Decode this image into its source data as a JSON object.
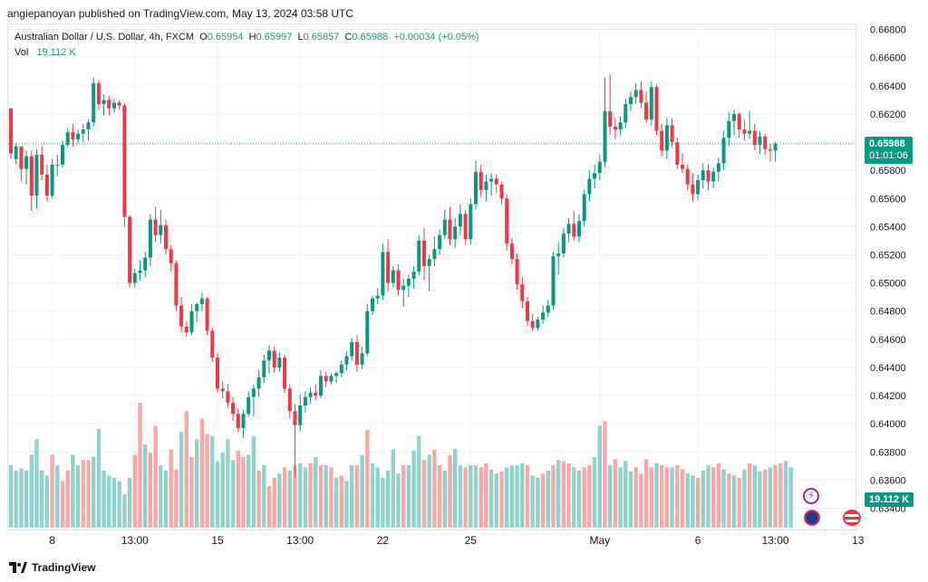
{
  "header": {
    "publisher_line": "angiepanoyan published on TradingView.com, May 13, 2024 03:58 UTC"
  },
  "legend": {
    "symbol": "Australian Dollar / U.S. Dollar, 4h, FXCM",
    "o_label": "O",
    "o_value": "0.65954",
    "h_label": "H",
    "h_value": "0.65997",
    "l_label": "L",
    "l_value": "0.65857",
    "c_label": "C",
    "c_value": "0.65988",
    "change": "+0.00034 (+0.05%)",
    "vol_label": "Vol",
    "vol_value": "19.112 K"
  },
  "price_tag": {
    "price": "0.65988",
    "countdown": "01:01:06"
  },
  "volume_tag": "19.112 K",
  "footer": {
    "logo_text": "TradingView"
  },
  "colors": {
    "up": "#089981",
    "down": "#f23645",
    "vol_up": "#92d2cc",
    "vol_down": "#f7a9a7",
    "grid": "#f0f3fa"
  },
  "chart_data": {
    "type": "candlestick",
    "title": "Australian Dollar / U.S. Dollar, 4h, FXCM",
    "y_ticks": [
      "0.66800",
      "0.66600",
      "0.66400",
      "0.66200",
      "0.66000",
      "0.65800",
      "0.65600",
      "0.65400",
      "0.65200",
      "0.65000",
      "0.64800",
      "0.64600",
      "0.64400",
      "0.64200",
      "0.64000",
      "0.63800",
      "0.63600",
      "0.63400"
    ],
    "ylim": [
      0.6332,
      0.6681
    ],
    "x_ticks": [
      {
        "label": "8",
        "index": 8
      },
      {
        "label": "13:00",
        "index": 24
      },
      {
        "label": "15",
        "index": 40
      },
      {
        "label": "13:00",
        "index": 56
      },
      {
        "label": "22",
        "index": 72
      },
      {
        "label": "25",
        "index": 89
      },
      {
        "label": "May",
        "index": 114
      },
      {
        "label": "6",
        "index": 133
      },
      {
        "label": "13:00",
        "index": 148
      },
      {
        "label": "13",
        "index": 164
      }
    ],
    "last_close": 0.65988,
    "candles": [
      [
        0.6624,
        0.6624,
        0.6588,
        0.6592
      ],
      [
        0.6588,
        0.6599,
        0.6584,
        0.6597
      ],
      [
        0.6597,
        0.6597,
        0.6572,
        0.6581
      ],
      [
        0.6581,
        0.6594,
        0.657,
        0.659
      ],
      [
        0.659,
        0.6594,
        0.6551,
        0.6562
      ],
      [
        0.6562,
        0.6595,
        0.6553,
        0.6591
      ],
      [
        0.6591,
        0.6597,
        0.6573,
        0.6577
      ],
      [
        0.6577,
        0.6584,
        0.6558,
        0.6562
      ],
      [
        0.6562,
        0.6588,
        0.656,
        0.6584
      ],
      [
        0.6584,
        0.6591,
        0.6576,
        0.6584
      ],
      [
        0.6584,
        0.6601,
        0.6582,
        0.6598
      ],
      [
        0.6598,
        0.661,
        0.6596,
        0.6607
      ],
      [
        0.6607,
        0.6613,
        0.6597,
        0.6602
      ],
      [
        0.6602,
        0.6609,
        0.6599,
        0.6606
      ],
      [
        0.6606,
        0.6613,
        0.66,
        0.6609
      ],
      [
        0.6609,
        0.6616,
        0.6601,
        0.6614
      ],
      [
        0.6614,
        0.6646,
        0.6611,
        0.6642
      ],
      [
        0.6642,
        0.6644,
        0.6623,
        0.6627
      ],
      [
        0.6627,
        0.6634,
        0.6619,
        0.663
      ],
      [
        0.663,
        0.6633,
        0.6619,
        0.6624
      ],
      [
        0.6624,
        0.6631,
        0.6621,
        0.6628
      ],
      [
        0.6628,
        0.663,
        0.6623,
        0.6626
      ],
      [
        0.6626,
        0.6628,
        0.654,
        0.6547
      ],
      [
        0.6547,
        0.6548,
        0.6497,
        0.65
      ],
      [
        0.65,
        0.651,
        0.6497,
        0.6507
      ],
      [
        0.6507,
        0.6516,
        0.6502,
        0.6509
      ],
      [
        0.6509,
        0.6522,
        0.6504,
        0.6518
      ],
      [
        0.6518,
        0.6549,
        0.6512,
        0.6545
      ],
      [
        0.6545,
        0.6554,
        0.6529,
        0.6534
      ],
      [
        0.6534,
        0.6552,
        0.6528,
        0.6541
      ],
      [
        0.6541,
        0.6545,
        0.652,
        0.6524
      ],
      [
        0.6524,
        0.6527,
        0.6508,
        0.6514
      ],
      [
        0.6514,
        0.6516,
        0.648,
        0.6484
      ],
      [
        0.6484,
        0.649,
        0.6465,
        0.6469
      ],
      [
        0.6469,
        0.6473,
        0.6462,
        0.6465
      ],
      [
        0.6465,
        0.6485,
        0.6463,
        0.648
      ],
      [
        0.648,
        0.6486,
        0.6472,
        0.6485
      ],
      [
        0.6485,
        0.6493,
        0.648,
        0.6489
      ],
      [
        0.6489,
        0.649,
        0.6463,
        0.6466
      ],
      [
        0.6466,
        0.6468,
        0.6444,
        0.6447
      ],
      [
        0.6447,
        0.645,
        0.6422,
        0.6425
      ],
      [
        0.6425,
        0.643,
        0.6418,
        0.6423
      ],
      [
        0.6423,
        0.6428,
        0.6411,
        0.6415
      ],
      [
        0.6415,
        0.6419,
        0.6402,
        0.6407
      ],
      [
        0.6407,
        0.6411,
        0.6394,
        0.6397
      ],
      [
        0.6397,
        0.641,
        0.639,
        0.6407
      ],
      [
        0.6407,
        0.6423,
        0.6405,
        0.6419
      ],
      [
        0.6419,
        0.6428,
        0.6405,
        0.6425
      ],
      [
        0.6425,
        0.6438,
        0.6419,
        0.6433
      ],
      [
        0.6433,
        0.6449,
        0.6429,
        0.6445
      ],
      [
        0.6445,
        0.6456,
        0.6436,
        0.6452
      ],
      [
        0.6452,
        0.6455,
        0.6436,
        0.644
      ],
      [
        0.644,
        0.6451,
        0.6437,
        0.6447
      ],
      [
        0.6447,
        0.6449,
        0.6422,
        0.6425
      ],
      [
        0.6425,
        0.6428,
        0.6404,
        0.6409
      ],
      [
        0.6409,
        0.6414,
        0.6362,
        0.6399
      ],
      [
        0.6399,
        0.6421,
        0.6395,
        0.6413
      ],
      [
        0.6413,
        0.6423,
        0.6408,
        0.6419
      ],
      [
        0.6419,
        0.6426,
        0.6414,
        0.6422
      ],
      [
        0.6422,
        0.6428,
        0.6417,
        0.642
      ],
      [
        0.642,
        0.6438,
        0.6418,
        0.6434
      ],
      [
        0.6434,
        0.6437,
        0.6426,
        0.643
      ],
      [
        0.643,
        0.6436,
        0.6428,
        0.6434
      ],
      [
        0.6434,
        0.6437,
        0.6429,
        0.6436
      ],
      [
        0.6436,
        0.6445,
        0.6433,
        0.6442
      ],
      [
        0.6442,
        0.6451,
        0.6438,
        0.6448
      ],
      [
        0.6448,
        0.6461,
        0.6445,
        0.6458
      ],
      [
        0.6458,
        0.6463,
        0.6437,
        0.6442
      ],
      [
        0.6442,
        0.6455,
        0.6439,
        0.645
      ],
      [
        0.645,
        0.6485,
        0.6448,
        0.648
      ],
      [
        0.648,
        0.6491,
        0.6477,
        0.6489
      ],
      [
        0.6489,
        0.6496,
        0.6485,
        0.6491
      ],
      [
        0.6491,
        0.6528,
        0.6488,
        0.6522
      ],
      [
        0.6522,
        0.6531,
        0.6494,
        0.65
      ],
      [
        0.65,
        0.6512,
        0.6497,
        0.6509
      ],
      [
        0.6509,
        0.6513,
        0.6491,
        0.6495
      ],
      [
        0.6495,
        0.6503,
        0.6483,
        0.6498
      ],
      [
        0.6498,
        0.6506,
        0.649,
        0.6503
      ],
      [
        0.6503,
        0.6512,
        0.6496,
        0.6508
      ],
      [
        0.6508,
        0.6534,
        0.6505,
        0.653
      ],
      [
        0.653,
        0.6539,
        0.6502,
        0.6512
      ],
      [
        0.6512,
        0.652,
        0.6494,
        0.6517
      ],
      [
        0.6517,
        0.6533,
        0.6512,
        0.6524
      ],
      [
        0.6524,
        0.6538,
        0.652,
        0.6534
      ],
      [
        0.6534,
        0.6552,
        0.6531,
        0.6545
      ],
      [
        0.6545,
        0.6554,
        0.6527,
        0.6531
      ],
      [
        0.6531,
        0.6546,
        0.6525,
        0.654
      ],
      [
        0.654,
        0.6556,
        0.6534,
        0.6549
      ],
      [
        0.6549,
        0.6552,
        0.6527,
        0.6531
      ],
      [
        0.6531,
        0.656,
        0.6527,
        0.6556
      ],
      [
        0.6556,
        0.6587,
        0.6552,
        0.6579
      ],
      [
        0.6579,
        0.6584,
        0.6561,
        0.6566
      ],
      [
        0.6566,
        0.6577,
        0.6558,
        0.6572
      ],
      [
        0.6572,
        0.6578,
        0.6562,
        0.6574
      ],
      [
        0.6574,
        0.6577,
        0.6564,
        0.657
      ],
      [
        0.657,
        0.6572,
        0.6556,
        0.656
      ],
      [
        0.656,
        0.6563,
        0.6523,
        0.6528
      ],
      [
        0.6528,
        0.6532,
        0.6513,
        0.6517
      ],
      [
        0.6517,
        0.6521,
        0.6495,
        0.6499
      ],
      [
        0.6499,
        0.6504,
        0.6482,
        0.6487
      ],
      [
        0.6487,
        0.649,
        0.6469,
        0.6473
      ],
      [
        0.6473,
        0.6478,
        0.6466,
        0.6468
      ],
      [
        0.6468,
        0.6476,
        0.6466,
        0.6474
      ],
      [
        0.6474,
        0.6484,
        0.6471,
        0.6479
      ],
      [
        0.6479,
        0.6488,
        0.6476,
        0.6484
      ],
      [
        0.6484,
        0.6522,
        0.6481,
        0.6519
      ],
      [
        0.6519,
        0.6529,
        0.6506,
        0.6521
      ],
      [
        0.6521,
        0.6539,
        0.6518,
        0.6535
      ],
      [
        0.6535,
        0.6546,
        0.6529,
        0.6542
      ],
      [
        0.6542,
        0.6551,
        0.653,
        0.6533
      ],
      [
        0.6533,
        0.6549,
        0.6529,
        0.6544
      ],
      [
        0.6544,
        0.6566,
        0.654,
        0.6563
      ],
      [
        0.6563,
        0.658,
        0.6558,
        0.6574
      ],
      [
        0.6574,
        0.6584,
        0.6567,
        0.6578
      ],
      [
        0.6578,
        0.6591,
        0.6573,
        0.6586
      ],
      [
        0.6586,
        0.6646,
        0.6582,
        0.6622
      ],
      [
        0.6622,
        0.6648,
        0.6605,
        0.6611
      ],
      [
        0.6611,
        0.6617,
        0.6602,
        0.6609
      ],
      [
        0.6609,
        0.6618,
        0.6605,
        0.6614
      ],
      [
        0.6614,
        0.6631,
        0.661,
        0.6627
      ],
      [
        0.6627,
        0.6636,
        0.6622,
        0.6632
      ],
      [
        0.6632,
        0.6642,
        0.6627,
        0.6637
      ],
      [
        0.6637,
        0.6643,
        0.6624,
        0.6628
      ],
      [
        0.6628,
        0.6636,
        0.6614,
        0.6616
      ],
      [
        0.6616,
        0.6643,
        0.6612,
        0.6639
      ],
      [
        0.6639,
        0.6641,
        0.6605,
        0.6608
      ],
      [
        0.6608,
        0.6613,
        0.659,
        0.6594
      ],
      [
        0.6594,
        0.6617,
        0.6588,
        0.6612
      ],
      [
        0.6612,
        0.6617,
        0.6596,
        0.66
      ],
      [
        0.66,
        0.6603,
        0.6581,
        0.6584
      ],
      [
        0.6584,
        0.6592,
        0.6578,
        0.6581
      ],
      [
        0.6581,
        0.6584,
        0.6566,
        0.657
      ],
      [
        0.657,
        0.6578,
        0.6558,
        0.6563
      ],
      [
        0.6563,
        0.6577,
        0.6559,
        0.6573
      ],
      [
        0.6573,
        0.6585,
        0.6567,
        0.658
      ],
      [
        0.658,
        0.6584,
        0.6566,
        0.6572
      ],
      [
        0.6572,
        0.6582,
        0.6567,
        0.6579
      ],
      [
        0.6579,
        0.6589,
        0.6572,
        0.6585
      ],
      [
        0.6585,
        0.6608,
        0.658,
        0.6603
      ],
      [
        0.6603,
        0.6621,
        0.6597,
        0.6615
      ],
      [
        0.6615,
        0.6623,
        0.6605,
        0.662
      ],
      [
        0.662,
        0.6621,
        0.6603,
        0.6609
      ],
      [
        0.6609,
        0.6616,
        0.6601,
        0.6606
      ],
      [
        0.6606,
        0.6622,
        0.6602,
        0.6608
      ],
      [
        0.6608,
        0.6613,
        0.6594,
        0.6598
      ],
      [
        0.6598,
        0.6608,
        0.6592,
        0.6604
      ],
      [
        0.6604,
        0.6606,
        0.6591,
        0.6595
      ],
      [
        0.6595,
        0.6599,
        0.6586,
        0.6594
      ],
      [
        0.6594,
        0.66,
        0.6586,
        0.6599
      ]
    ],
    "volume": [
      60,
      55,
      57,
      55,
      70,
      85,
      55,
      50,
      70,
      60,
      45,
      55,
      70,
      60,
      65,
      65,
      68,
      95,
      55,
      50,
      48,
      45,
      32,
      48,
      70,
      120,
      80,
      72,
      98,
      60,
      55,
      75,
      56,
      92,
      112,
      68,
      85,
      105,
      90,
      88,
      64,
      72,
      85,
      65,
      74,
      68,
      70,
      88,
      55,
      60,
      40,
      48,
      52,
      58,
      55,
      60,
      62,
      58,
      62,
      68,
      60,
      60,
      58,
      48,
      50,
      45,
      60,
      60,
      70,
      94,
      62,
      58,
      48,
      55,
      75,
      52,
      60,
      60,
      74,
      88,
      65,
      70,
      75,
      60,
      55,
      70,
      76,
      60,
      58,
      60,
      60,
      58,
      62,
      56,
      52,
      54,
      58,
      60,
      60,
      62,
      60,
      50,
      48,
      52,
      55,
      60,
      65,
      64,
      62,
      58,
      55,
      58,
      60,
      68,
      98,
      102,
      60,
      66,
      58,
      64,
      54,
      58,
      52,
      66,
      58,
      62,
      60,
      58,
      58,
      60,
      56,
      52,
      50,
      48,
      55,
      60,
      58,
      62,
      56,
      52,
      50,
      48,
      56,
      62,
      60,
      54,
      56,
      58,
      60,
      62,
      64,
      58
    ],
    "volume_direction": [
      1,
      1,
      1,
      1,
      1,
      1,
      1,
      1,
      0,
      1,
      0,
      0,
      1,
      1,
      0,
      0,
      1,
      1,
      1,
      1,
      1,
      1,
      1,
      1,
      0,
      0,
      1,
      0,
      0,
      1,
      1,
      0,
      0,
      1,
      0,
      0,
      1,
      0,
      0,
      1,
      1,
      1,
      1,
      1,
      0,
      0,
      1,
      1,
      0,
      1,
      0,
      0,
      1,
      0,
      1,
      0,
      1,
      1,
      0,
      1,
      0,
      1,
      0,
      1,
      0,
      1,
      1,
      0,
      1,
      0,
      1,
      1,
      1,
      1,
      1,
      1,
      0,
      1,
      1,
      1,
      0,
      1,
      0,
      0,
      1,
      0,
      1,
      1,
      0,
      1,
      1,
      0,
      0,
      1,
      1,
      0,
      1,
      1,
      1,
      1,
      0,
      1,
      1,
      0,
      1,
      0,
      1,
      0,
      0,
      1,
      1,
      0,
      0,
      1,
      1,
      0,
      1,
      0,
      1,
      1,
      1,
      0,
      0,
      0,
      0,
      1,
      0,
      0,
      1,
      0,
      0,
      1,
      1,
      0,
      1,
      1,
      0,
      0,
      1,
      0,
      1,
      0,
      1,
      0,
      1,
      1,
      0,
      1,
      0,
      0,
      1,
      1
    ]
  }
}
